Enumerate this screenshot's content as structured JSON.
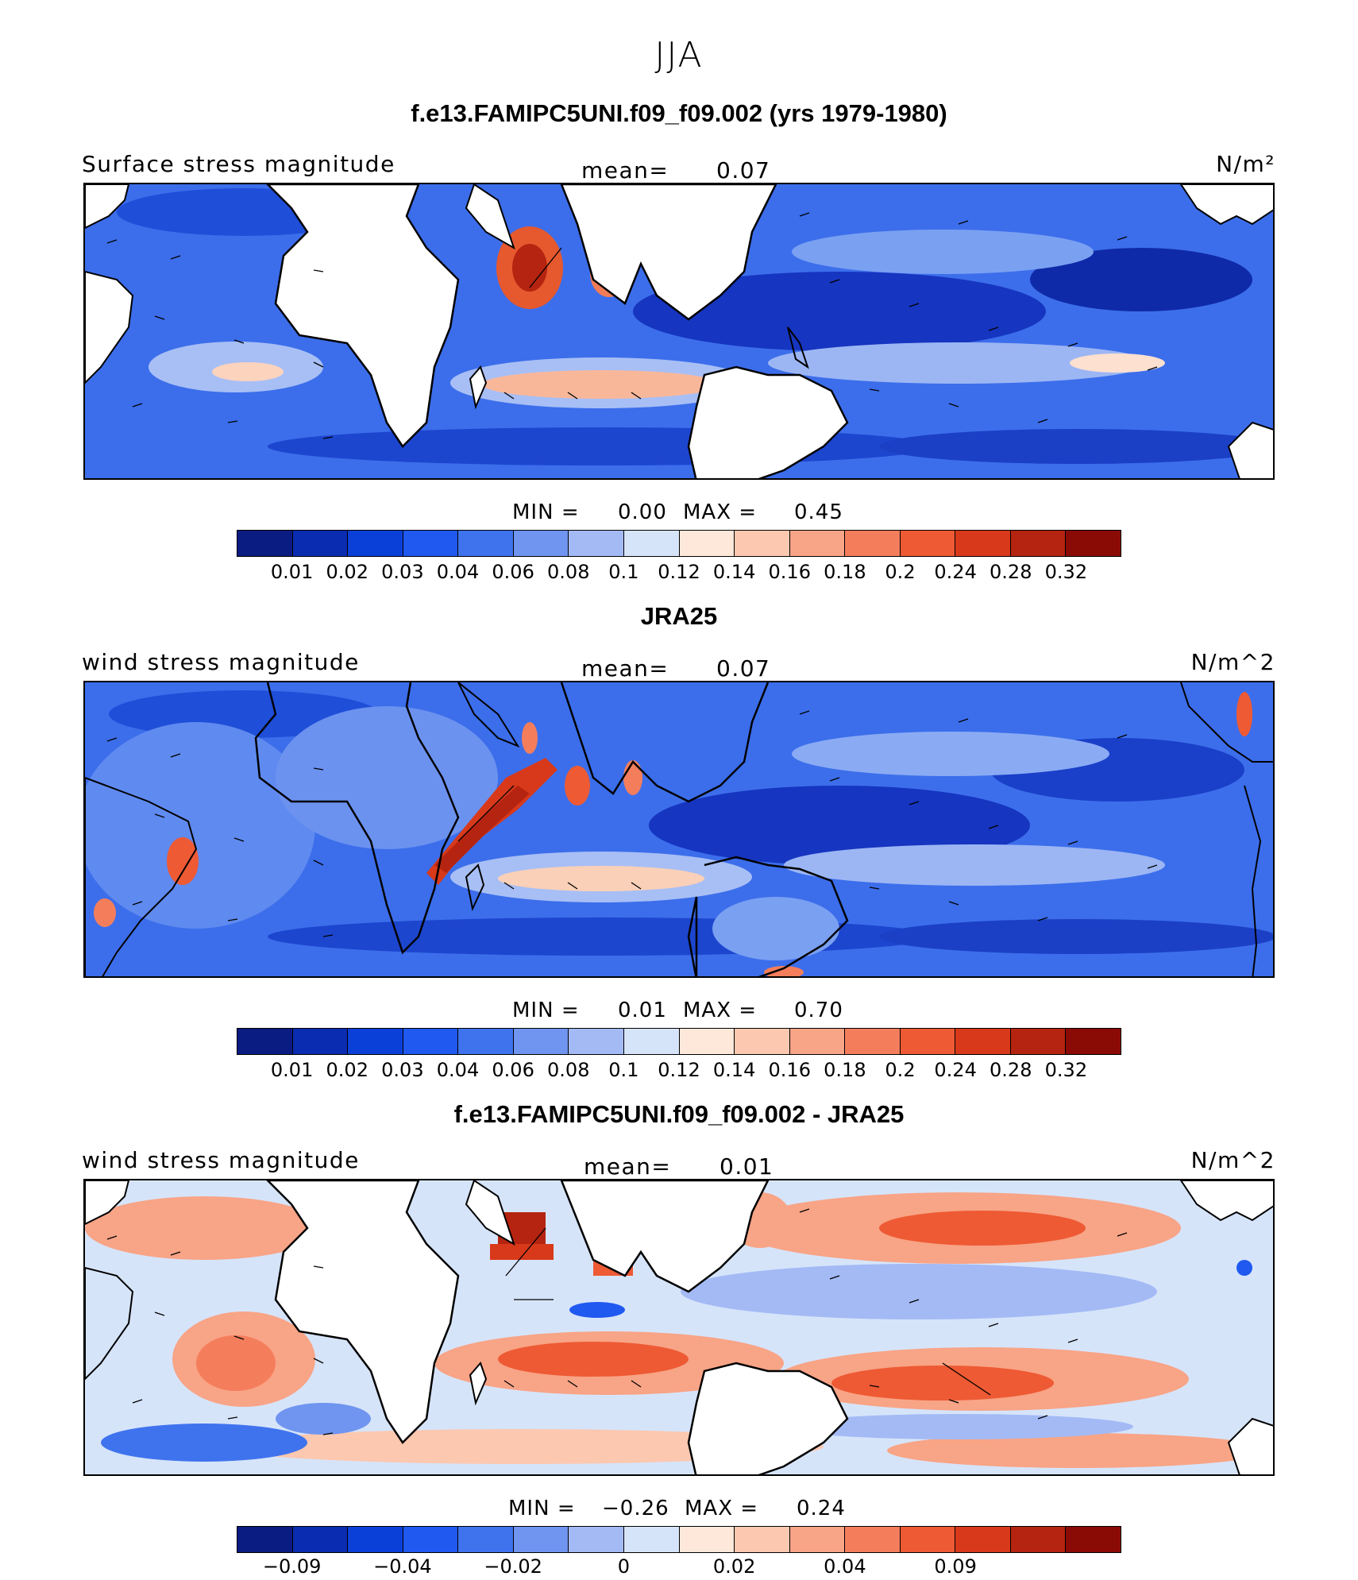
{
  "figure": {
    "season": "JJA"
  },
  "panels": [
    {
      "title": "f.e13.FAMIPC5UNI.f09_f09.002 (yrs 1979-1980)",
      "variable": "Surface stress magnitude",
      "mean_label": "mean=",
      "mean_value": "0.07",
      "units": "N/m²",
      "min_label": "MIN =",
      "min_value": "0.00",
      "max_label": "MAX =",
      "max_value": "0.45",
      "colorbar": {
        "colors": [
          "#0a1b82",
          "#0a2cb0",
          "#0b40d8",
          "#1f59f0",
          "#3f73ee",
          "#7095f0",
          "#a3baf5",
          "#d6e4fa",
          "#fde8da",
          "#fcc8b0",
          "#f8a486",
          "#f47e5c",
          "#ee5a34",
          "#d8391a",
          "#b52410",
          "#8a0a06"
        ],
        "ticks": [
          "0.01",
          "0.02",
          "0.03",
          "0.04",
          "0.06",
          "0.08",
          "0.1",
          "0.12",
          "0.14",
          "0.16",
          "0.18",
          "0.2",
          "0.24",
          "0.28",
          "0.32"
        ]
      }
    },
    {
      "title": "JRA25",
      "variable": "wind stress magnitude",
      "mean_label": "mean=",
      "mean_value": "0.07",
      "units": "N/m^2",
      "min_label": "MIN =",
      "min_value": "0.01",
      "max_label": "MAX =",
      "max_value": "0.70",
      "colorbar": {
        "colors": [
          "#0a1b82",
          "#0a2cb0",
          "#0b40d8",
          "#1f59f0",
          "#3f73ee",
          "#7095f0",
          "#a3baf5",
          "#d6e4fa",
          "#fde8da",
          "#fcc8b0",
          "#f8a486",
          "#f47e5c",
          "#ee5a34",
          "#d8391a",
          "#b52410",
          "#8a0a06"
        ],
        "ticks": [
          "0.01",
          "0.02",
          "0.03",
          "0.04",
          "0.06",
          "0.08",
          "0.1",
          "0.12",
          "0.14",
          "0.16",
          "0.18",
          "0.2",
          "0.24",
          "0.28",
          "0.32"
        ]
      }
    },
    {
      "title": "f.e13.FAMIPC5UNI.f09_f09.002 - JRA25",
      "variable": "wind stress magnitude",
      "mean_label": "mean=",
      "mean_value": "0.01",
      "units": "N/m^2",
      "min_label": "MIN =",
      "min_value": "−0.26",
      "max_label": "MAX =",
      "max_value": "0.24",
      "colorbar": {
        "colors": [
          "#0a1b82",
          "#0a2cb0",
          "#0b40d8",
          "#1f59f0",
          "#3f73ee",
          "#7095f0",
          "#a3baf5",
          "#d6e4fa",
          "#fde8da",
          "#fcc8b0",
          "#f8a486",
          "#f47e5c",
          "#ee5a34",
          "#d8391a",
          "#b52410",
          "#8a0a06"
        ],
        "ticks": [
          "−0.09",
          "",
          "−0.04",
          "",
          "−0.02",
          "",
          "0",
          "",
          "0.02",
          "",
          "0.04",
          "",
          "0.09",
          "",
          ""
        ]
      }
    }
  ]
}
